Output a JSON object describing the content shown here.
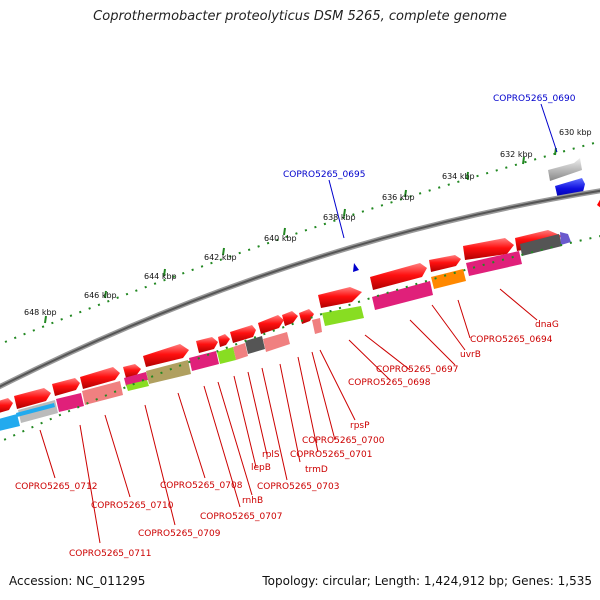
{
  "title": "Coprothermobacter proteolyticus DSM 5265, complete genome",
  "accession": "Accession: NC_011295",
  "summary": "Topology: circular; Length: 1,424,912 bp; Genes: 1,535",
  "colors": {
    "background": "#ffffff",
    "backbone": "#7a7a7a",
    "gene_forward": "#ff0000",
    "label_red": "#cc0000",
    "label_blue": "#0000cc",
    "tick_green": "#228822"
  },
  "scale_labels": [
    "630 kbp",
    "632 kbp",
    "634 kbp",
    "636 kbp",
    "638 kbp",
    "640 kbp",
    "642 kbp",
    "644 kbp",
    "646 kbp",
    "648 kbp"
  ],
  "blue_labels": [
    "COPRO5265_0690",
    "COPRO5265_0695"
  ],
  "gene_labels": [
    "dnaG",
    "COPRO5265_0694",
    "uvrB",
    "COPRO5265_0697",
    "COPRO5265_0698",
    "rpsP",
    "COPRO5265_0700",
    "COPRO5265_0701",
    "trmD",
    "COPRO5265_0703",
    "rplS",
    "lepB",
    "rnhB",
    "COPRO5265_0707",
    "COPRO5265_0708",
    "COPRO5265_0709",
    "COPRO5265_0710",
    "COPRO5265_0711",
    "COPRO5265_0712"
  ]
}
